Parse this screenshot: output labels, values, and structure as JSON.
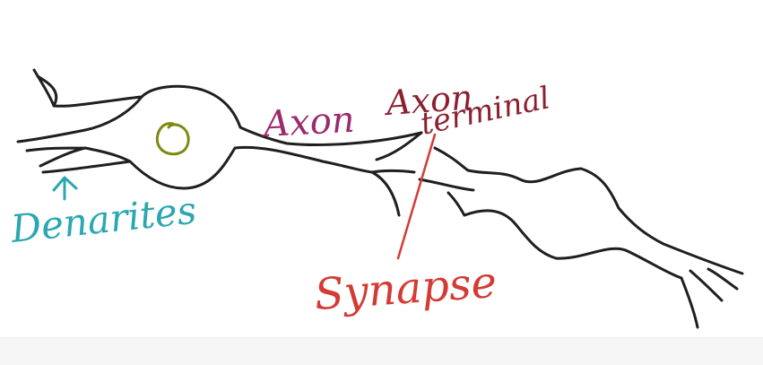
{
  "labels": {
    "dendrites": "Denarites",
    "axon": "Axon",
    "axon_terminal_line1": "Axon",
    "axon_terminal_line2": "terminal",
    "synapse": "Synapse"
  },
  "colors": {
    "ink": "#1f1f1f",
    "nucleus": "#7d8a12",
    "dendrites": "#2aa7b0",
    "axon": "#9b2a6e",
    "axon_terminal": "#8a2131",
    "synapse": "#d33b34",
    "background": "#ffffff"
  }
}
